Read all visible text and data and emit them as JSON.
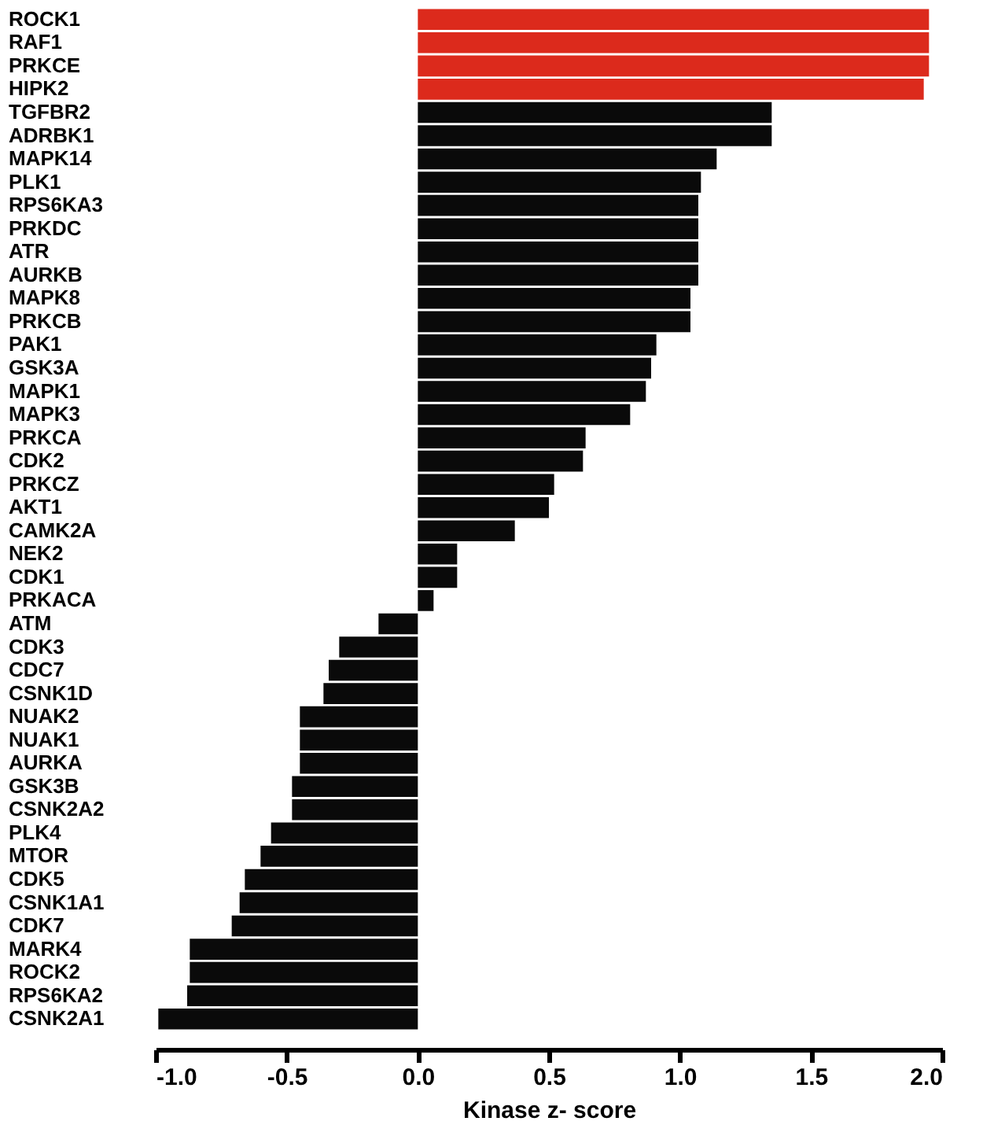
{
  "chart_data": {
    "type": "bar",
    "orientation": "horizontal",
    "xlabel": "Kinase z- score",
    "categories": [
      "ROCK1",
      "RAF1",
      "PRKCE",
      "HIPK2",
      "TGFBR2",
      "ADRBK1",
      "MAPK14",
      "PLK1",
      "RPS6KA3",
      "PRKDC",
      "ATR",
      "AURKB",
      "MAPK8",
      "PRKCB",
      "PAK1",
      "GSK3A",
      "MAPK1",
      "MAPK3",
      "PRKCA",
      "CDK2",
      "PRKCZ",
      "AKT1",
      "CAMK2A",
      "NEK2",
      "CDK1",
      "PRKACA",
      "ATM",
      "CDK3",
      "CDC7",
      "CSNK1D",
      "NUAK2",
      "NUAK1",
      "AURKA",
      "GSK3B",
      "CSNK2A2",
      "PLK4",
      "MTOR",
      "CDK5",
      "CSNK1A1",
      "CDK7",
      "MARK4",
      "ROCK2",
      "RPS6KA2",
      "CSNK2A1"
    ],
    "values": [
      1.95,
      1.95,
      1.95,
      1.93,
      1.35,
      1.35,
      1.14,
      1.08,
      1.07,
      1.07,
      1.07,
      1.07,
      1.04,
      1.04,
      0.91,
      0.89,
      0.87,
      0.81,
      0.64,
      0.63,
      0.52,
      0.5,
      0.37,
      0.15,
      0.15,
      0.06,
      -0.15,
      -0.3,
      -0.34,
      -0.36,
      -0.45,
      -0.45,
      -0.45,
      -0.48,
      -0.48,
      -0.56,
      -0.6,
      -0.66,
      -0.68,
      -0.71,
      -0.87,
      -0.87,
      -0.88,
      -0.99
    ],
    "colors": [
      "#dc2a1c",
      "#dc2a1c",
      "#dc2a1c",
      "#dc2a1c",
      "#0a0a0a",
      "#0a0a0a",
      "#0a0a0a",
      "#0a0a0a",
      "#0a0a0a",
      "#0a0a0a",
      "#0a0a0a",
      "#0a0a0a",
      "#0a0a0a",
      "#0a0a0a",
      "#0a0a0a",
      "#0a0a0a",
      "#0a0a0a",
      "#0a0a0a",
      "#0a0a0a",
      "#0a0a0a",
      "#0a0a0a",
      "#0a0a0a",
      "#0a0a0a",
      "#0a0a0a",
      "#0a0a0a",
      "#0a0a0a",
      "#0a0a0a",
      "#0a0a0a",
      "#0a0a0a",
      "#0a0a0a",
      "#0a0a0a",
      "#0a0a0a",
      "#0a0a0a",
      "#0a0a0a",
      "#0a0a0a",
      "#0a0a0a",
      "#0a0a0a",
      "#0a0a0a",
      "#0a0a0a",
      "#0a0a0a",
      "#0a0a0a",
      "#0a0a0a",
      "#0a0a0a",
      "#0a0a0a"
    ],
    "xlim": [
      -1.0,
      2.0
    ],
    "xticks": [
      {
        "value": -1.0,
        "label": "-1.0"
      },
      {
        "value": -0.5,
        "label": "-0.5"
      },
      {
        "value": 0.0,
        "label": "0.0"
      },
      {
        "value": 0.5,
        "label": "0.5"
      },
      {
        "value": 1.0,
        "label": "1.0"
      },
      {
        "value": 1.5,
        "label": "1.5"
      },
      {
        "value": 2.0,
        "label": "2.0"
      }
    ],
    "grid": false
  }
}
